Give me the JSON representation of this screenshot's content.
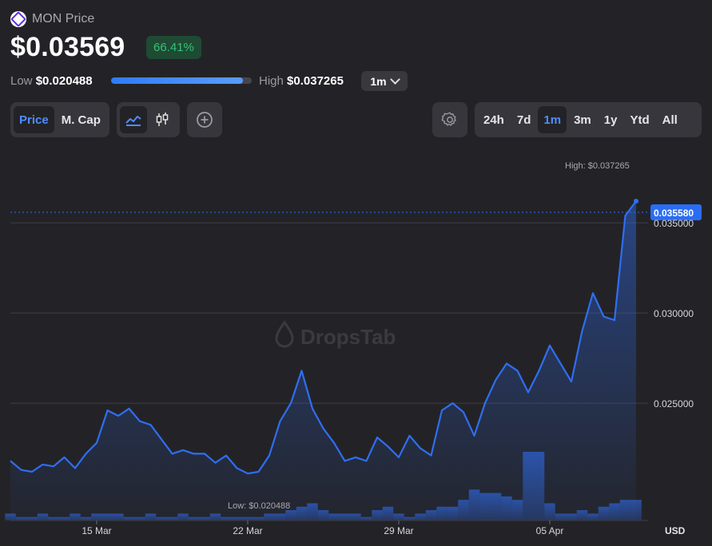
{
  "header": {
    "title": "MON Price",
    "price": "$0.03569",
    "change": "66.41%",
    "low_label": "Low",
    "low_value": "$0.020488",
    "high_label": "High",
    "high_value": "$0.037265",
    "range_fill_fraction": 0.94,
    "range_select": "1m"
  },
  "toolbar": {
    "metric_tabs": [
      "Price",
      "M. Cap"
    ],
    "metric_active": "Price",
    "chart_type_icons": [
      "line-chart-icon",
      "candlestick-icon"
    ],
    "add_icon": "plus-circle-icon",
    "settings_icon": "gear-icon",
    "period_tabs": [
      "24h",
      "7d",
      "1m",
      "3m",
      "1y",
      "Ytd",
      "All"
    ],
    "period_active": "1m"
  },
  "chart_data": {
    "type": "area",
    "watermark": "DropsTab",
    "currency_label": "USD",
    "x_ticks": [
      "15 Mar",
      "22 Mar",
      "29 Mar",
      "05 Apr"
    ],
    "y_ticks": [
      0.025,
      0.03,
      0.035
    ],
    "y_tick_labels": [
      "0.025000",
      "0.030000",
      "0.035000"
    ],
    "ylim": [
      0.0185,
      0.0385
    ],
    "current_price_label": "0.035580",
    "current_price": 0.03558,
    "high_annotation": "High: $0.037265",
    "low_annotation": "Low: $0.020488",
    "colors": {
      "line": "#2f6ef2",
      "current_badge": "#2a6df4",
      "grid": "#3e3e44"
    },
    "x": [
      "11 Mar",
      "11 Mar",
      "12 Mar",
      "12 Mar",
      "13 Mar",
      "13 Mar",
      "14 Mar",
      "14 Mar",
      "15 Mar",
      "15 Mar",
      "16 Mar",
      "16 Mar",
      "17 Mar",
      "17 Mar",
      "18 Mar",
      "18 Mar",
      "19 Mar",
      "19 Mar",
      "20 Mar",
      "20 Mar",
      "21 Mar",
      "21 Mar",
      "22 Mar",
      "22 Mar",
      "23 Mar",
      "23 Mar",
      "24 Mar",
      "24 Mar",
      "25 Mar",
      "25 Mar",
      "26 Mar",
      "26 Mar",
      "27 Mar",
      "27 Mar",
      "28 Mar",
      "28 Mar",
      "29 Mar",
      "29 Mar",
      "30 Mar",
      "30 Mar",
      "31 Mar",
      "31 Mar",
      "01 Apr",
      "01 Apr",
      "02 Apr",
      "02 Apr",
      "03 Apr",
      "03 Apr",
      "04 Apr",
      "04 Apr",
      "05 Apr",
      "05 Apr",
      "06 Apr",
      "06 Apr",
      "07 Apr",
      "07 Apr",
      "08 Apr",
      "08 Apr",
      "09 Apr"
    ],
    "series": [
      {
        "values": [
          0.0218,
          0.0213,
          0.0212,
          0.0216,
          0.0215,
          0.022,
          0.0214,
          0.0222,
          0.0228,
          0.0246,
          0.0243,
          0.0247,
          0.024,
          0.0238,
          0.023,
          0.0222,
          0.0224,
          0.0222,
          0.0222,
          0.0217,
          0.0221,
          0.0214,
          0.0211,
          0.0212,
          0.0221,
          0.024,
          0.025,
          0.0268,
          0.0247,
          0.0236,
          0.0228,
          0.0218,
          0.022,
          0.0218,
          0.0231,
          0.0226,
          0.022,
          0.0232,
          0.0225,
          0.0221,
          0.0246,
          0.025,
          0.0245,
          0.0232,
          0.025,
          0.0263,
          0.0272,
          0.0268,
          0.0256,
          0.0268,
          0.0282,
          0.0272,
          0.0262,
          0.029,
          0.0311,
          0.0298,
          0.0296,
          0.0354,
          0.0362
        ]
      },
      {
        "name": "Volume",
        "values": [
          0.1,
          0.05,
          0.05,
          0.1,
          0.05,
          0.05,
          0.1,
          0.05,
          0.1,
          0.1,
          0.1,
          0.05,
          0.05,
          0.1,
          0.05,
          0.05,
          0.1,
          0.05,
          0.05,
          0.1,
          0.05,
          0.05,
          0.05,
          0.05,
          0.1,
          0.1,
          0.15,
          0.2,
          0.25,
          0.15,
          0.1,
          0.1,
          0.1,
          0.05,
          0.15,
          0.2,
          0.1,
          0.05,
          0.1,
          0.15,
          0.2,
          0.2,
          0.3,
          0.45,
          0.4,
          0.4,
          0.35,
          0.3,
          1.0,
          1.0,
          0.25,
          0.1,
          0.1,
          0.15,
          0.1,
          0.2,
          0.25,
          0.3,
          0.3
        ]
      }
    ]
  }
}
